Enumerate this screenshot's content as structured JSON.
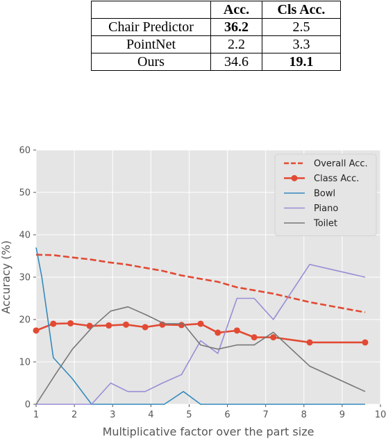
{
  "table": {
    "headers": [
      "",
      "Acc.",
      "Cls Acc."
    ],
    "rows": [
      {
        "name": "Chair Predictor",
        "acc": "36.2",
        "cls": "2.5",
        "bold": "acc"
      },
      {
        "name": "PointNet",
        "acc": "2.2",
        "cls": "3.3",
        "bold": ""
      },
      {
        "name": "Ours",
        "acc": "34.6",
        "cls": "19.1",
        "bold": "cls"
      }
    ]
  },
  "chart_data": {
    "type": "line",
    "title": "",
    "xlabel": "Multiplicative factor over the part size",
    "ylabel": "Accuracy (%)",
    "xlim": [
      1,
      10
    ],
    "ylim": [
      0,
      60
    ],
    "xticks": [
      "1",
      "2",
      "3",
      "4",
      "5",
      "6",
      "7",
      "8",
      "9",
      "10"
    ],
    "yticks": [
      "0",
      "10",
      "20",
      "30",
      "40",
      "50",
      "60"
    ],
    "grid": true,
    "legend_position": "top-right",
    "colors": {
      "background": "#e5e5e5",
      "grid": "#ffffff"
    },
    "series": [
      {
        "name": "Overall Acc.",
        "color": "#e24a33",
        "style": "dashed",
        "x": [
          1,
          1.45,
          1.9,
          2.4,
          2.9,
          3.35,
          3.85,
          4.3,
          4.8,
          5.3,
          5.75,
          6.25,
          6.7,
          7.2,
          8.15,
          9.6
        ],
        "y": [
          35.3,
          35.2,
          34.7,
          34.2,
          33.5,
          33.0,
          32.2,
          31.5,
          30.4,
          29.6,
          28.9,
          27.6,
          26.9,
          26.1,
          24.1,
          21.7
        ]
      },
      {
        "name": "Class Acc.",
        "color": "#e24a33",
        "style": "solid-markers",
        "x": [
          1,
          1.45,
          1.9,
          2.4,
          2.9,
          3.35,
          3.85,
          4.3,
          4.8,
          5.3,
          5.75,
          6.25,
          6.7,
          7.2,
          8.15,
          9.6
        ],
        "y": [
          17.4,
          19.0,
          19.1,
          18.5,
          18.6,
          18.8,
          18.2,
          18.8,
          18.7,
          19.0,
          16.9,
          17.4,
          15.8,
          15.8,
          14.6,
          14.6
        ]
      },
      {
        "name": "Bowl",
        "color": "#348abd",
        "style": "solid",
        "x": [
          1,
          1.15,
          1.45,
          1.95,
          2.45,
          3.0,
          3.5,
          4.0,
          4.35,
          4.85,
          5.3,
          6.0,
          7.0,
          8.0,
          9.6
        ],
        "y": [
          37,
          30,
          11,
          6,
          0,
          0,
          0,
          0,
          0,
          3,
          0,
          0,
          0,
          0,
          0
        ]
      },
      {
        "name": "Piano",
        "color": "#988ed5",
        "style": "solid",
        "x": [
          1,
          2.0,
          2.45,
          2.95,
          3.4,
          3.85,
          4.3,
          4.8,
          5.3,
          5.75,
          6.25,
          6.7,
          7.2,
          8.15,
          9.6
        ],
        "y": [
          0,
          0,
          0,
          5,
          3,
          3,
          5,
          7,
          15,
          12,
          25,
          25,
          20,
          33,
          30
        ]
      },
      {
        "name": "Toilet",
        "color": "#777777",
        "style": "solid",
        "x": [
          1,
          1.5,
          1.95,
          2.45,
          2.95,
          3.4,
          3.9,
          4.35,
          4.85,
          5.3,
          5.75,
          6.25,
          6.7,
          7.2,
          8.15,
          9.6
        ],
        "y": [
          0,
          7,
          13,
          18,
          22,
          23,
          21,
          19,
          19,
          14,
          13,
          14,
          14,
          17,
          9,
          3
        ]
      }
    ]
  }
}
